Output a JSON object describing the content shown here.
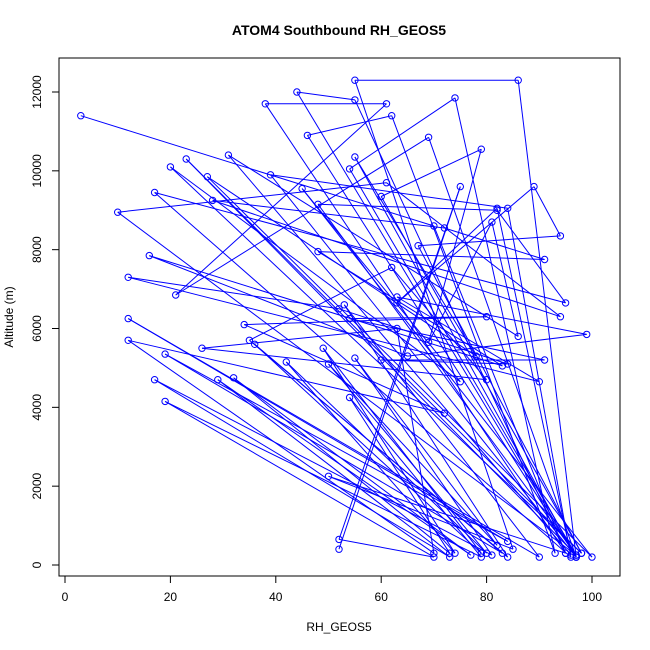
{
  "chart_data": {
    "type": "line",
    "title": "ATOM4 Southbound RH_GEOS5",
    "xlabel": "RH_GEOS5",
    "ylabel": "Altitude (m)",
    "xlim": [
      0,
      102
    ],
    "ylim": [
      0,
      12400
    ],
    "x_ticks": [
      0,
      20,
      40,
      60,
      80,
      100
    ],
    "y_ticks": [
      0,
      2000,
      4000,
      6000,
      8000,
      10000,
      12000
    ],
    "grid": false,
    "legend": "none",
    "series": [
      {
        "color": "#0000ff",
        "marker": "open-circle",
        "points": [
          [
            3,
            11400
          ],
          [
            70,
            8600
          ],
          [
            95,
            300
          ],
          [
            50,
            2250
          ],
          [
            85,
            400
          ],
          [
            55,
            12300
          ],
          [
            86,
            12300
          ],
          [
            97,
            200
          ],
          [
            44,
            12000
          ],
          [
            55,
            11800
          ],
          [
            95,
            300
          ],
          [
            38,
            11700
          ],
          [
            61,
            11700
          ],
          [
            21,
            6850
          ],
          [
            69,
            10850
          ],
          [
            97,
            200
          ],
          [
            46,
            10900
          ],
          [
            62,
            11400
          ],
          [
            93,
            300
          ],
          [
            74,
            11850
          ],
          [
            54,
            10050
          ],
          [
            97,
            250
          ],
          [
            23,
            10300
          ],
          [
            98,
            300
          ],
          [
            67,
            8100
          ],
          [
            94,
            8350
          ],
          [
            89,
            9600
          ],
          [
            63,
            6650
          ],
          [
            82,
            9050
          ],
          [
            96,
            250
          ],
          [
            31,
            10400
          ],
          [
            86,
            5800
          ],
          [
            81,
            8700
          ],
          [
            69,
            5650
          ],
          [
            79,
            10550
          ],
          [
            60,
            9350
          ],
          [
            98,
            300
          ],
          [
            20,
            10100
          ],
          [
            75,
            4650
          ],
          [
            45,
            9550
          ],
          [
            100,
            200
          ],
          [
            27,
            9850
          ],
          [
            78,
            5300
          ],
          [
            55,
            10350
          ],
          [
            97,
            200
          ],
          [
            39,
            9900
          ],
          [
            84,
            9050
          ],
          [
            96,
            200
          ],
          [
            17,
            9450
          ],
          [
            95,
            6650
          ],
          [
            82,
            9000
          ],
          [
            48,
            9150
          ],
          [
            97,
            250
          ],
          [
            10,
            8950
          ],
          [
            61,
            9700
          ],
          [
            94,
            6300
          ],
          [
            28,
            9250
          ],
          [
            72,
            8550
          ],
          [
            91,
            7750
          ],
          [
            48,
            7950
          ],
          [
            83,
            5050
          ],
          [
            16,
            7850
          ],
          [
            65,
            5300
          ],
          [
            99,
            5850
          ],
          [
            63,
            6800
          ],
          [
            90,
            4650
          ],
          [
            12,
            7300
          ],
          [
            52,
            6500
          ],
          [
            84,
            5100
          ],
          [
            60,
            5200
          ],
          [
            91,
            5200
          ],
          [
            54,
            6250
          ],
          [
            80,
            6300
          ],
          [
            34,
            6100
          ],
          [
            72,
            3850
          ],
          [
            12,
            5700
          ],
          [
            70,
            300
          ],
          [
            63,
            6000
          ],
          [
            26,
            5500
          ],
          [
            80,
            4700
          ],
          [
            62,
            7550
          ],
          [
            35,
            5700
          ],
          [
            84,
            200
          ],
          [
            53,
            6600
          ],
          [
            90,
            200
          ],
          [
            12,
            6250
          ],
          [
            84,
            600
          ],
          [
            19,
            5350
          ],
          [
            83,
            300
          ],
          [
            36,
            5600
          ],
          [
            79,
            300
          ],
          [
            49,
            5500
          ],
          [
            74,
            300
          ],
          [
            42,
            5150
          ],
          [
            80,
            300
          ],
          [
            50,
            5100
          ],
          [
            82,
            500
          ],
          [
            55,
            5250
          ],
          [
            81,
            250
          ],
          [
            17,
            4700
          ],
          [
            73,
            200
          ],
          [
            29,
            4700
          ],
          [
            77,
            250
          ],
          [
            32,
            4750
          ],
          [
            73,
            300
          ],
          [
            54,
            4250
          ],
          [
            79,
            200
          ],
          [
            19,
            4150
          ],
          [
            70,
            200
          ],
          [
            52,
            650
          ],
          [
            75,
            9600
          ],
          [
            52,
            400
          ]
        ]
      }
    ]
  }
}
